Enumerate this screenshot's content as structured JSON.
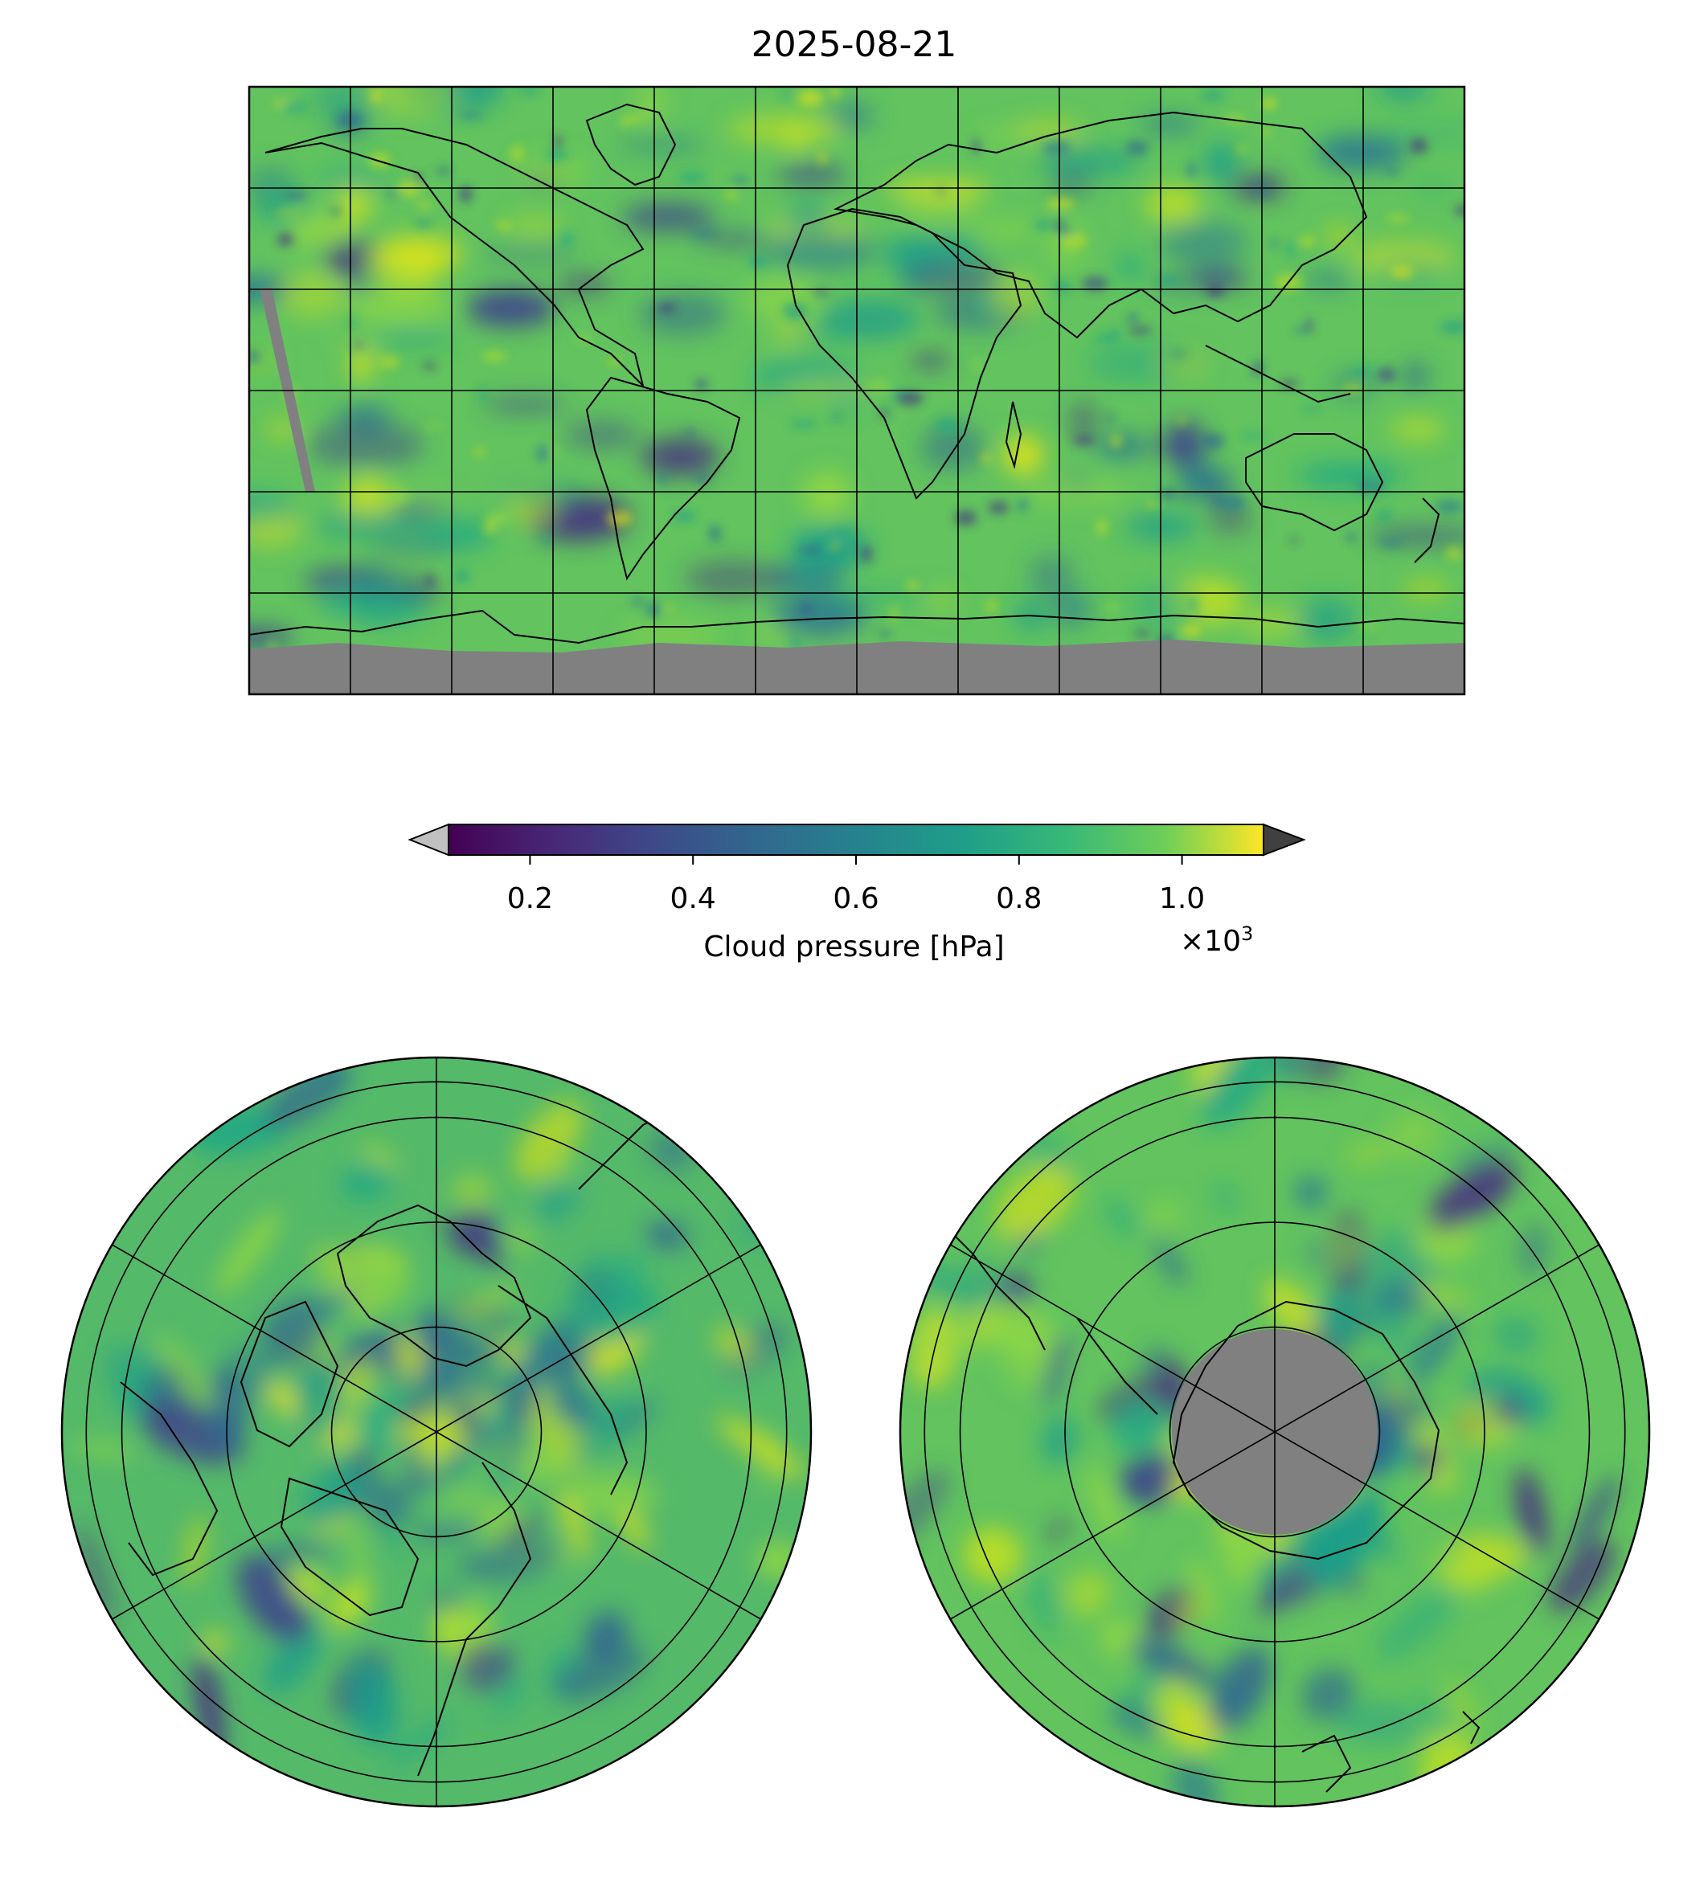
{
  "title": "2025-08-21",
  "colorbar": {
    "label": "Cloud pressure [hPa]",
    "multiplier": "×10",
    "multiplier_exp": "3",
    "ticks": [
      "0.2",
      "0.4",
      "0.6",
      "0.8",
      "1.0"
    ],
    "tick_values": [
      0.2,
      0.4,
      0.6,
      0.8,
      1.0
    ],
    "range": [
      0.1,
      1.1
    ],
    "colormap": "viridis",
    "extend": "both",
    "under_color": "#c0c0c0",
    "over_color": "#404040"
  },
  "panels": [
    {
      "id": "global",
      "projection": "plate-carree",
      "nodata_color": "#808080"
    },
    {
      "id": "north-polar",
      "projection": "north-polar-stereographic"
    },
    {
      "id": "south-polar",
      "projection": "south-polar-stereographic",
      "nodata_color": "#808080"
    }
  ]
}
